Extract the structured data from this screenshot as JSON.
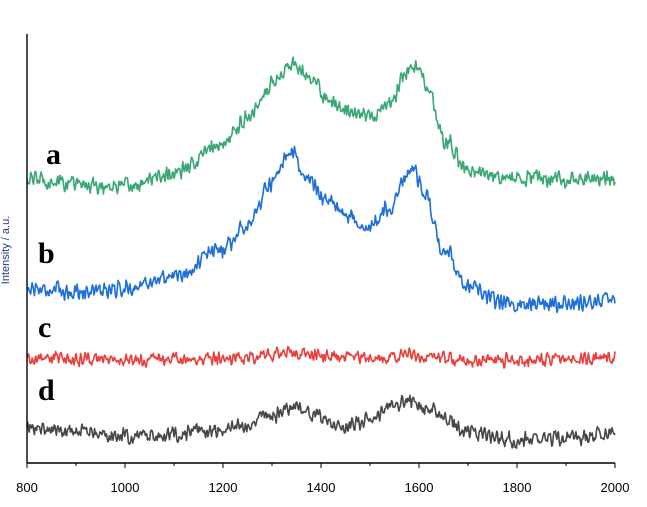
{
  "chart_data": {
    "type": "line",
    "title": "",
    "xlabel": "",
    "ylabel": "",
    "xlim": [
      800,
      2000
    ],
    "xticks": [
      "800",
      "1000",
      "1200",
      "1400",
      "1600",
      "1800",
      "2000"
    ],
    "grid": false,
    "legend": "none",
    "series": [
      {
        "name": "a",
        "color": "#3aa874",
        "baseline": 2.85,
        "noise": 0.1,
        "x": [
          800,
          900,
          1000,
          1100,
          1200,
          1250,
          1300,
          1340,
          1380,
          1420,
          1460,
          1500,
          1540,
          1580,
          1600,
          1620,
          1650,
          1700,
          1750,
          1800,
          1900,
          2000
        ],
        "values": [
          0,
          -0.05,
          -0.08,
          0.05,
          0.35,
          0.62,
          0.95,
          1.15,
          0.98,
          0.78,
          0.7,
          0.63,
          0.75,
          1.1,
          1.12,
          0.85,
          0.4,
          0.08,
          0.02,
          0,
          0,
          0
        ]
      },
      {
        "name": "b",
        "color": "#1f6fd8",
        "baseline": 1.75,
        "noise": 0.1,
        "x": [
          800,
          900,
          1000,
          1100,
          1200,
          1250,
          1300,
          1340,
          1380,
          1420,
          1460,
          1500,
          1540,
          1570,
          1590,
          1610,
          1650,
          1700,
          1750,
          1800,
          1900,
          2000
        ],
        "values": [
          0,
          -0.03,
          0,
          0.12,
          0.4,
          0.65,
          1.05,
          1.35,
          1.05,
          0.85,
          0.72,
          0.62,
          0.8,
          1.1,
          1.2,
          0.95,
          0.4,
          0.02,
          -0.12,
          -0.15,
          -0.15,
          -0.12
        ]
      },
      {
        "name": "c",
        "color": "#e8403d",
        "baseline": 1.05,
        "noise": 0.08,
        "x": [
          800,
          1000,
          1200,
          1340,
          1400,
          1500,
          1600,
          1700,
          1800,
          2000
        ],
        "values": [
          0,
          -0.02,
          0,
          0.05,
          0.02,
          0.01,
          0.03,
          -0.03,
          -0.02,
          0
        ]
      },
      {
        "name": "d",
        "color": "#474747",
        "baseline": 0.35,
        "noise": 0.09,
        "x": [
          800,
          900,
          1000,
          1100,
          1200,
          1300,
          1350,
          1400,
          1450,
          1500,
          1550,
          1580,
          1620,
          1700,
          1800,
          1900,
          2000
        ],
        "values": [
          0,
          -0.04,
          -0.08,
          -0.06,
          -0.02,
          0.12,
          0.22,
          0.1,
          0.03,
          0.08,
          0.22,
          0.28,
          0.18,
          -0.05,
          -0.12,
          -0.1,
          -0.05
        ]
      }
    ]
  }
}
